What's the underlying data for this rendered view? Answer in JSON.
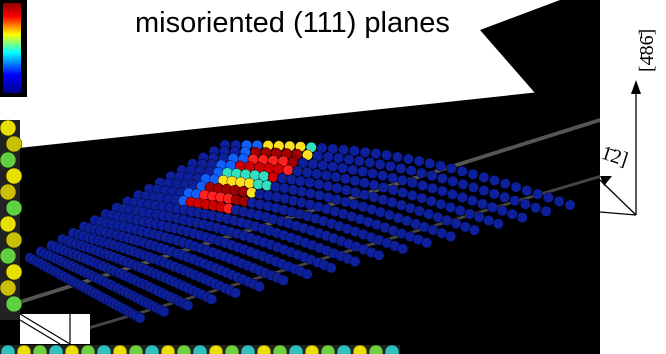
{
  "title": "misoriented (111) planes",
  "axes": {
    "vertical": "[4̄86̄]",
    "oblique": "1̄2]"
  }
}
